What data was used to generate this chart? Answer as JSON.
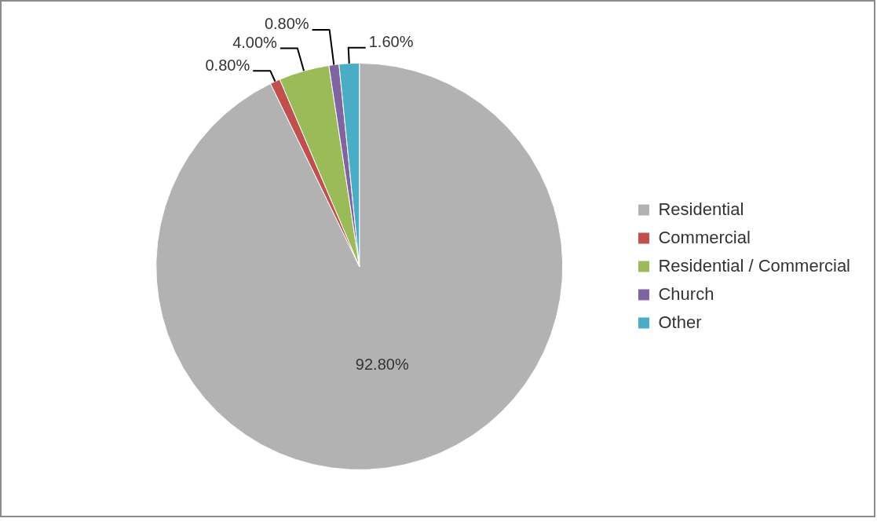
{
  "chart_data": {
    "type": "pie",
    "categories": [
      "Residential",
      "Commercial",
      "Residential / Commercial",
      "Church",
      "Other"
    ],
    "values": [
      92.8,
      0.8,
      4.0,
      0.8,
      1.6
    ],
    "colors": [
      "#b2b2b2",
      "#c0504d",
      "#9bbb59",
      "#8064a2",
      "#4bacc6"
    ],
    "value_labels": [
      "92.80%",
      "0.80%",
      "4.00%",
      "0.80%",
      "1.60%"
    ],
    "legend": "right"
  }
}
